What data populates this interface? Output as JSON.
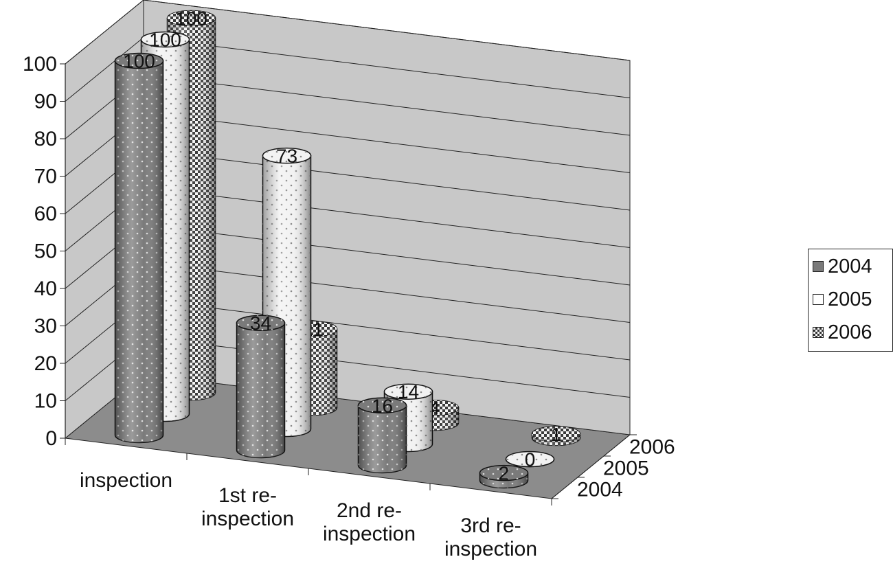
{
  "chart_data": {
    "type": "bar",
    "style": "3d-cylinder",
    "categories": [
      "inspection",
      "1st re-\ninspection",
      "2nd re-\ninspection",
      "3rd re-\ninspection"
    ],
    "series": [
      {
        "name": "2004",
        "values": [
          100,
          34,
          16,
          2
        ],
        "color": "#7a7a7a",
        "pattern": "dots"
      },
      {
        "name": "2005",
        "values": [
          100,
          73,
          14,
          0
        ],
        "color": "#f2f2f2",
        "pattern": "dots"
      },
      {
        "name": "2006",
        "values": [
          100,
          21,
          4,
          1
        ],
        "color": "#9a9a9a",
        "pattern": "checker"
      }
    ],
    "yticks": [
      "0",
      "10",
      "20",
      "30",
      "40",
      "50",
      "60",
      "70",
      "80",
      "90",
      "100"
    ],
    "ylim": [
      0,
      100
    ],
    "depth_labels": [
      "2004",
      "2005",
      "2006"
    ],
    "xlabel": "",
    "ylabel": "",
    "title": "",
    "grid": true,
    "legend_position": "right",
    "colors": {
      "wall": "#c8c8c8",
      "floor": "#8c8c8c",
      "gridline": "#222222"
    }
  }
}
